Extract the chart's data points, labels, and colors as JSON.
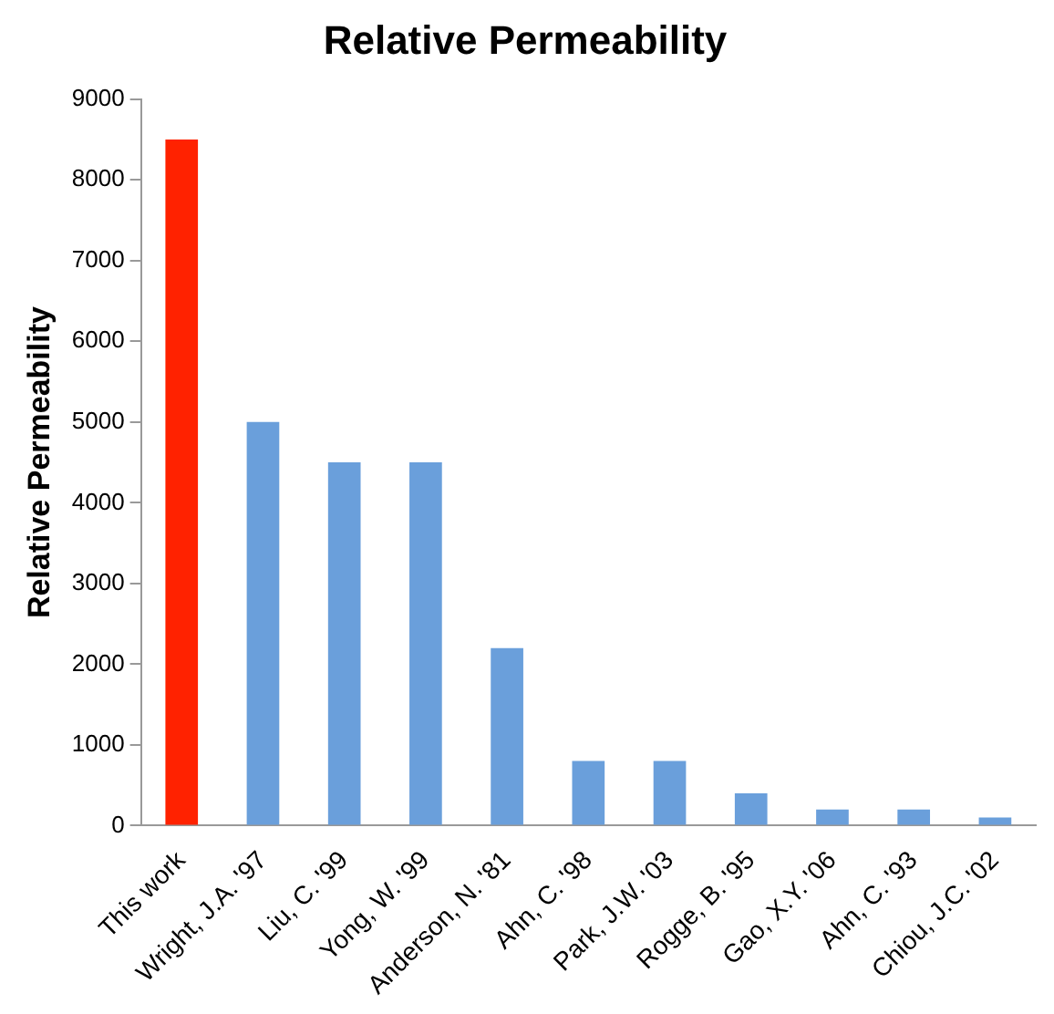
{
  "chart_data": {
    "type": "bar",
    "title": "Relative Permeability",
    "ylabel": "Relative Permeability",
    "categories": [
      "This work",
      "Wright, J.A. '97",
      "Liu, C. '99",
      "Yong, W. '99",
      "Anderson, N. '81",
      "Ahn, C. '98",
      "Park, J.W. '03",
      "Rogge, B. '95",
      "Gao, X.Y. '06",
      "Ahn, C. '93",
      "Chiou, J.C. '02"
    ],
    "values": [
      8500,
      5000,
      4500,
      4500,
      2200,
      800,
      800,
      400,
      200,
      200,
      100
    ],
    "colors": [
      "#ff2200",
      "#6a9fdb",
      "#6a9fdb",
      "#6a9fdb",
      "#6a9fdb",
      "#6a9fdb",
      "#6a9fdb",
      "#6a9fdb",
      "#6a9fdb",
      "#6a9fdb",
      "#6a9fdb"
    ],
    "ylim": [
      0,
      9000
    ],
    "yticks": [
      0,
      1000,
      2000,
      3000,
      4000,
      5000,
      6000,
      7000,
      8000,
      9000
    ],
    "grid": false,
    "legend": false
  }
}
